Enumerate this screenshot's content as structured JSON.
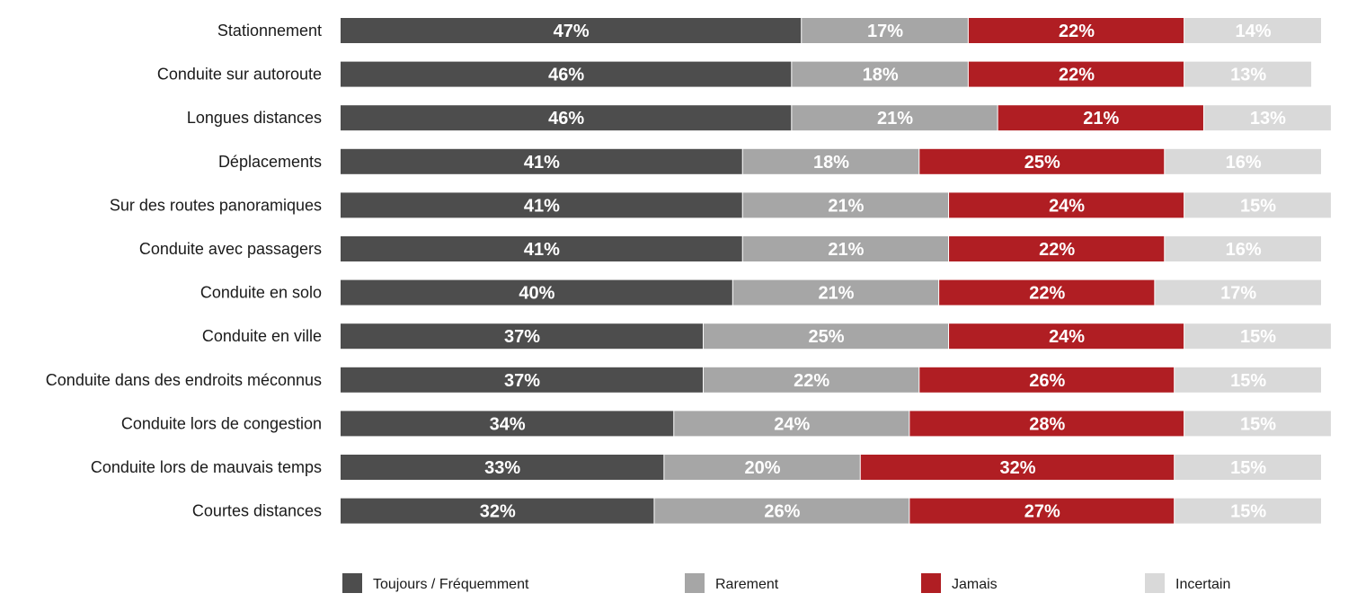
{
  "chart_data": {
    "type": "bar",
    "orientation": "horizontal",
    "stacked": true,
    "title": "",
    "xlabel": "",
    "ylabel": "",
    "xlim": [
      0,
      100
    ],
    "grid": false,
    "legend_position": "bottom",
    "categories": [
      "Stationnement",
      "Conduite sur autoroute",
      "Longues distances",
      "Déplacements",
      "Sur des routes panoramiques",
      "Conduite avec passagers",
      "Conduite en solo",
      "Conduite en ville",
      "Conduite dans des endroits méconnus",
      "Conduite lors de congestion",
      "Conduite lors de mauvais temps",
      "Courtes distances"
    ],
    "series": [
      {
        "name": "Toujours / Fréquemment",
        "color": "#4d4d4d",
        "values": [
          47,
          46,
          46,
          41,
          41,
          41,
          40,
          37,
          37,
          34,
          33,
          32
        ]
      },
      {
        "name": "Rarement",
        "color": "#a6a6a6",
        "values": [
          17,
          18,
          21,
          18,
          21,
          21,
          21,
          25,
          22,
          24,
          20,
          26
        ]
      },
      {
        "name": "Jamais",
        "color": "#b01e23",
        "values": [
          22,
          22,
          21,
          25,
          24,
          22,
          22,
          24,
          26,
          28,
          32,
          27
        ]
      },
      {
        "name": "Incertain",
        "color": "#d9d9d9",
        "values": [
          14,
          13,
          13,
          16,
          15,
          16,
          17,
          15,
          15,
          15,
          15,
          15
        ]
      }
    ]
  }
}
